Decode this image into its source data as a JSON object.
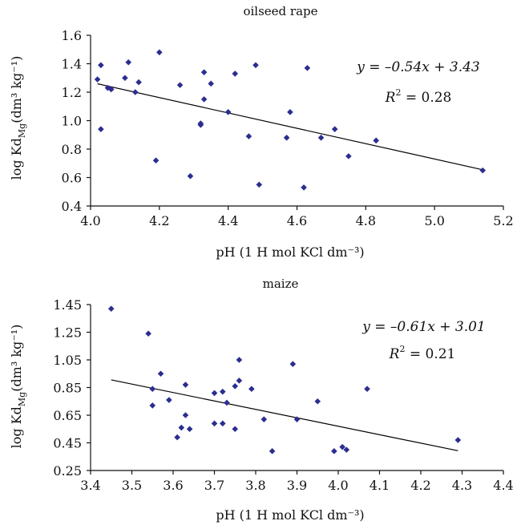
{
  "chart_data": [
    {
      "type": "scatter",
      "title": "oilseed  rape",
      "xlabel": "pH (1 H mol KCl dm⁻³)",
      "ylabel": "log Kd",
      "ylabel_sub": "Mg",
      "ylabel_unit": "(dm³ kg⁻¹)",
      "xlim": [
        4.0,
        5.2
      ],
      "ylim": [
        0.4,
        1.6
      ],
      "xticks": [
        "4.0",
        "4.2",
        "4.4",
        "4.6",
        "4.8",
        "5.0",
        "5.2"
      ],
      "yticks": [
        "0.4",
        "0.6",
        "0.8",
        "1.0",
        "1.2",
        "1.4",
        "1.6"
      ],
      "grid": false,
      "equation": "y = –0.54x + 3.43",
      "r2_label": "R",
      "r2_value": " = 0.28",
      "trend": {
        "slope": -0.54,
        "intercept": 3.43,
        "x0": 4.02,
        "x1": 5.14
      },
      "points": [
        {
          "x": 4.02,
          "y": 1.29
        },
        {
          "x": 4.03,
          "y": 1.39
        },
        {
          "x": 4.03,
          "y": 0.94
        },
        {
          "x": 4.05,
          "y": 1.23
        },
        {
          "x": 4.06,
          "y": 1.22
        },
        {
          "x": 4.1,
          "y": 1.3
        },
        {
          "x": 4.11,
          "y": 1.41
        },
        {
          "x": 4.13,
          "y": 1.2
        },
        {
          "x": 4.14,
          "y": 1.27
        },
        {
          "x": 4.19,
          "y": 0.72
        },
        {
          "x": 4.2,
          "y": 1.48
        },
        {
          "x": 4.26,
          "y": 1.25
        },
        {
          "x": 4.29,
          "y": 0.61
        },
        {
          "x": 4.32,
          "y": 0.97
        },
        {
          "x": 4.32,
          "y": 0.98
        },
        {
          "x": 4.33,
          "y": 1.34
        },
        {
          "x": 4.33,
          "y": 1.15
        },
        {
          "x": 4.35,
          "y": 1.26
        },
        {
          "x": 4.4,
          "y": 1.06
        },
        {
          "x": 4.42,
          "y": 1.33
        },
        {
          "x": 4.46,
          "y": 0.89
        },
        {
          "x": 4.48,
          "y": 1.39
        },
        {
          "x": 4.49,
          "y": 0.55
        },
        {
          "x": 4.57,
          "y": 0.88
        },
        {
          "x": 4.58,
          "y": 1.06
        },
        {
          "x": 4.62,
          "y": 0.53
        },
        {
          "x": 4.63,
          "y": 1.37
        },
        {
          "x": 4.67,
          "y": 0.88
        },
        {
          "x": 4.71,
          "y": 0.94
        },
        {
          "x": 4.75,
          "y": 0.75
        },
        {
          "x": 4.83,
          "y": 0.86
        },
        {
          "x": 5.14,
          "y": 0.65
        }
      ]
    },
    {
      "type": "scatter",
      "title": "maize",
      "xlabel": "pH (1 H mol KCl dm⁻³)",
      "ylabel": "log Kd",
      "ylabel_sub": "Mg",
      "ylabel_unit": "(dm³ kg⁻¹)",
      "xlim": [
        3.4,
        4.4
      ],
      "ylim": [
        0.25,
        1.45
      ],
      "xticks": [
        "3.4",
        "3.5",
        "3.6",
        "3.7",
        "3.8",
        "3.9",
        "4.0",
        "4.1",
        "4.2",
        "4.3",
        "4.4"
      ],
      "yticks": [
        "0.25",
        "0.45",
        "0.65",
        "0.85",
        "1.05",
        "1.25",
        "1.45"
      ],
      "grid": false,
      "equation": "y = –0.61x + 3.01",
      "r2_label": "R",
      "r2_value": " = 0.21",
      "trend": {
        "slope": -0.61,
        "intercept": 3.01,
        "x0": 3.45,
        "x1": 4.29
      },
      "points": [
        {
          "x": 3.45,
          "y": 1.42
        },
        {
          "x": 3.54,
          "y": 1.24
        },
        {
          "x": 3.55,
          "y": 0.84
        },
        {
          "x": 3.55,
          "y": 0.72
        },
        {
          "x": 3.57,
          "y": 0.95
        },
        {
          "x": 3.59,
          "y": 0.76
        },
        {
          "x": 3.61,
          "y": 0.49
        },
        {
          "x": 3.62,
          "y": 0.56
        },
        {
          "x": 3.63,
          "y": 0.87
        },
        {
          "x": 3.63,
          "y": 0.65
        },
        {
          "x": 3.64,
          "y": 0.55
        },
        {
          "x": 3.7,
          "y": 0.81
        },
        {
          "x": 3.7,
          "y": 0.59
        },
        {
          "x": 3.72,
          "y": 0.82
        },
        {
          "x": 3.72,
          "y": 0.59
        },
        {
          "x": 3.73,
          "y": 0.74
        },
        {
          "x": 3.75,
          "y": 0.86
        },
        {
          "x": 3.75,
          "y": 0.55
        },
        {
          "x": 3.76,
          "y": 0.9
        },
        {
          "x": 3.76,
          "y": 1.05
        },
        {
          "x": 3.79,
          "y": 0.84
        },
        {
          "x": 3.82,
          "y": 0.62
        },
        {
          "x": 3.84,
          "y": 0.39
        },
        {
          "x": 3.89,
          "y": 1.02
        },
        {
          "x": 3.9,
          "y": 0.62
        },
        {
          "x": 3.95,
          "y": 0.75
        },
        {
          "x": 3.99,
          "y": 0.39
        },
        {
          "x": 4.01,
          "y": 0.42
        },
        {
          "x": 4.02,
          "y": 0.4
        },
        {
          "x": 4.07,
          "y": 0.84
        },
        {
          "x": 4.29,
          "y": 0.47
        }
      ]
    }
  ],
  "colors": {
    "marker": "#2b2e8f",
    "axis": "#111111",
    "trend": "#000000"
  }
}
